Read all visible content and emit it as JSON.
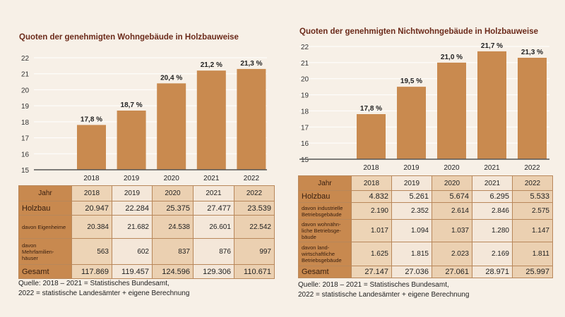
{
  "chart_data": [
    {
      "type": "bar",
      "title": "Quoten der genehmigten Wohngebäude in Holzbauweise",
      "categories": [
        "2018",
        "2019",
        "2020",
        "2021",
        "2022"
      ],
      "values": [
        17.8,
        18.7,
        20.4,
        21.2,
        21.3
      ],
      "labels": [
        "17,8 %",
        "18,7 %",
        "20,4 %",
        "21,2 %",
        "21,3 %"
      ],
      "yticks": [
        "15",
        "16",
        "17",
        "18",
        "19",
        "20",
        "21",
        "22"
      ],
      "ylim": [
        15,
        22
      ],
      "grid": true,
      "bar_color": "#c98a4f"
    },
    {
      "type": "bar",
      "title": "Quoten der genehmigten Nichtwohngebäude in Holzbauweise",
      "categories": [
        "2018",
        "2019",
        "2020",
        "2021",
        "2022"
      ],
      "values": [
        17.8,
        19.5,
        21.0,
        21.7,
        21.3
      ],
      "labels": [
        "17,8 %",
        "19,5 %",
        "21,0 %",
        "21,7 %",
        "21,3 %"
      ],
      "yticks": [
        "15",
        "16",
        "17",
        "18",
        "19",
        "20",
        "21",
        "22"
      ],
      "ylim": [
        15,
        22
      ],
      "grid": true,
      "bar_color": "#c98a4f"
    }
  ],
  "tables": [
    {
      "header": [
        "Jahr",
        "2018",
        "2019",
        "2020",
        "2021",
        "2022"
      ],
      "rows": [
        {
          "label": "Holzbau",
          "values": [
            "20.947",
            "22.284",
            "25.375",
            "27.477",
            "23.539"
          ]
        },
        {
          "label": "davon Eigenheime",
          "values": [
            "20.384",
            "21.682",
            "24.538",
            "26.601",
            "22.542"
          ]
        },
        {
          "label": "davon Mehrfamilien-häuser",
          "values": [
            "563",
            "602",
            "837",
            "876",
            "997"
          ]
        },
        {
          "label": "Gesamt",
          "values": [
            "117.869",
            "119.457",
            "124.596",
            "129.306",
            "110.671"
          ]
        }
      ],
      "source": [
        "Quelle: 2018 – 2021 = Statistisches Bundesamt,",
        "2022 = statistische Landesämter + eigene Berechnung"
      ]
    },
    {
      "header": [
        "Jahr",
        "2018",
        "2019",
        "2020",
        "2021",
        "2022"
      ],
      "rows": [
        {
          "label": "Holzbau",
          "values": [
            "4.832",
            "5.261",
            "5.674",
            "6.295",
            "5.533"
          ]
        },
        {
          "label": "davon industrielle Betriebsgebäude",
          "values": [
            "2.190",
            "2.352",
            "2.614",
            "2.846",
            "2.575"
          ]
        },
        {
          "label": "davon wohnähn-liche Betriebsge-bäude",
          "values": [
            "1.017",
            "1.094",
            "1.037",
            "1.280",
            "1.147"
          ]
        },
        {
          "label": "davon land-wirtschaftliche Betriebsgebäude",
          "values": [
            "1.625",
            "1.815",
            "2.023",
            "2.169",
            "1.811"
          ]
        },
        {
          "label": "Gesamt",
          "values": [
            "27.147",
            "27.036",
            "27.061",
            "28.971",
            "25.997"
          ]
        }
      ],
      "source": [
        "Quelle: 2018 – 2021 = Statistisches Bundesamt,",
        "2022 = statistische Landesämter + eigene Berechnung"
      ]
    }
  ]
}
